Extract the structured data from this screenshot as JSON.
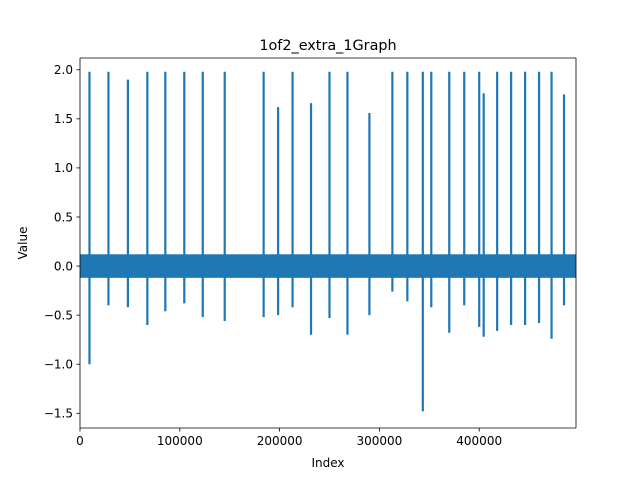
{
  "chart_data": {
    "type": "line",
    "title": "1of2_extra_1Graph",
    "xlabel": "Index",
    "ylabel": "Value",
    "xlim": [
      0,
      497000
    ],
    "ylim": [
      -1.65,
      2.12
    ],
    "x_ticks": [
      0,
      100000,
      200000,
      300000,
      400000
    ],
    "x_tick_labels": [
      "0",
      "100000",
      "200000",
      "300000",
      "400000"
    ],
    "y_ticks": [
      -1.5,
      -1.0,
      -0.5,
      0.0,
      0.5,
      1.0,
      1.5,
      2.0
    ],
    "y_tick_labels": [
      "−1.5",
      "−1.0",
      "−0.5",
      "0.0",
      "0.5",
      "1.0",
      "1.5",
      "2.0"
    ],
    "grid": false,
    "colors": {
      "series": "#1f77b4"
    },
    "baseline_band": [
      -0.12,
      0.12
    ],
    "series": [
      {
        "spikes": [
          {
            "x": 9500,
            "max": 1.98,
            "min": -1.0
          },
          {
            "x": 28500,
            "max": 1.98,
            "min": -0.4
          },
          {
            "x": 48000,
            "max": 1.9,
            "min": -0.42
          },
          {
            "x": 67500,
            "max": 1.98,
            "min": -0.6
          },
          {
            "x": 85500,
            "max": 1.98,
            "min": -0.46
          },
          {
            "x": 104500,
            "max": 1.98,
            "min": -0.38
          },
          {
            "x": 123000,
            "max": 1.98,
            "min": -0.52
          },
          {
            "x": 145000,
            "max": 1.98,
            "min": -0.56
          },
          {
            "x": 184000,
            "max": 1.98,
            "min": -0.52
          },
          {
            "x": 198500,
            "max": 1.62,
            "min": -0.5
          },
          {
            "x": 213000,
            "max": 1.98,
            "min": -0.42
          },
          {
            "x": 231500,
            "max": 1.66,
            "min": -0.7
          },
          {
            "x": 250000,
            "max": 1.98,
            "min": -0.53
          },
          {
            "x": 268000,
            "max": 1.98,
            "min": -0.7
          },
          {
            "x": 290000,
            "max": 1.56,
            "min": -0.5
          },
          {
            "x": 313000,
            "max": 1.98,
            "min": -0.26
          },
          {
            "x": 328000,
            "max": 1.98,
            "min": -0.36
          },
          {
            "x": 343500,
            "max": 1.98,
            "min": -1.48
          },
          {
            "x": 352000,
            "max": 1.98,
            "min": -0.42
          },
          {
            "x": 370000,
            "max": 1.98,
            "min": -0.68
          },
          {
            "x": 385000,
            "max": 1.98,
            "min": -0.4
          },
          {
            "x": 400000,
            "max": 1.98,
            "min": -0.62
          },
          {
            "x": 404500,
            "max": 1.76,
            "min": -0.72
          },
          {
            "x": 418000,
            "max": 1.98,
            "min": -0.66
          },
          {
            "x": 432000,
            "max": 1.98,
            "min": -0.6
          },
          {
            "x": 446000,
            "max": 1.98,
            "min": -0.6
          },
          {
            "x": 460000,
            "max": 1.98,
            "min": -0.58
          },
          {
            "x": 472500,
            "max": 1.98,
            "min": -0.74
          },
          {
            "x": 485000,
            "max": 1.75,
            "min": -0.4
          }
        ]
      }
    ]
  }
}
